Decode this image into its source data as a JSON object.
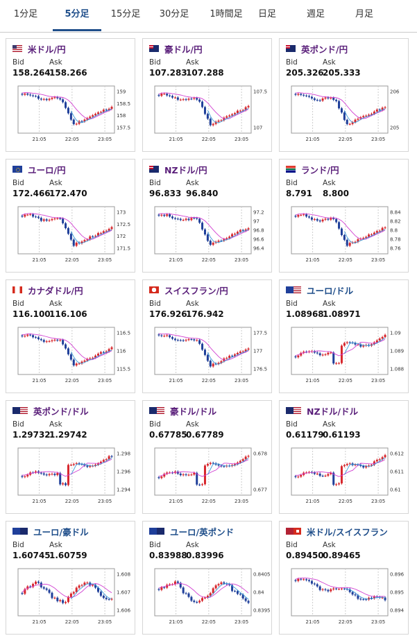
{
  "tabs": [
    {
      "label": "1分足",
      "active": false
    },
    {
      "label": "5分足",
      "active": true
    },
    {
      "label": "15分足",
      "active": false
    },
    {
      "label": "30分足",
      "active": false
    },
    {
      "label": "1時間足",
      "active": false
    },
    {
      "label": "日足",
      "active": false
    },
    {
      "label": "週足",
      "active": false
    },
    {
      "label": "月足",
      "active": false
    }
  ],
  "labels": {
    "bid": "Bid",
    "ask": "Ask"
  },
  "cards": [
    {
      "pair": "米ドル/円",
      "flag": "us-flag-icon",
      "bid": "158.264",
      "ask": "158.266",
      "ticks": [
        "159",
        "158.5",
        "158",
        "157.5"
      ],
      "shape": "jpy",
      "usd": false,
      "chart_data": {
        "type": "candlestick",
        "x_ticks": [
          "21:05",
          "22:05",
          "23:05"
        ],
        "y_ticks": [
          159,
          158.5,
          158,
          157.5
        ]
      }
    },
    {
      "pair": "豪ドル/円",
      "flag": "au-flag-icon",
      "bid": "107.283",
      "ask": "107.288",
      "ticks": [
        "107.5",
        "107"
      ],
      "shape": "jpy",
      "usd": false,
      "chart_data": {
        "type": "candlestick",
        "x_ticks": [
          "21:05",
          "22:05",
          "23:05"
        ],
        "y_ticks": [
          107.5,
          107
        ]
      }
    },
    {
      "pair": "英ポンド/円",
      "flag": "gb-flag-icon",
      "bid": "205.326",
      "ask": "205.333",
      "ticks": [
        "206",
        "205"
      ],
      "shape": "jpy",
      "usd": false,
      "chart_data": {
        "type": "candlestick",
        "x_ticks": [
          "21:05",
          "22:05",
          "23:05"
        ],
        "y_ticks": [
          206,
          205
        ]
      }
    },
    {
      "pair": "ユーロ/円",
      "flag": "eu-flag-icon",
      "bid": "172.466",
      "ask": "172.470",
      "ticks": [
        "173",
        "172.5",
        "172",
        "171.5"
      ],
      "shape": "jpy",
      "usd": false,
      "chart_data": {
        "type": "candlestick",
        "x_ticks": [
          "21:05",
          "22:05",
          "23:05"
        ],
        "y_ticks": [
          173,
          172.5,
          172,
          171.5
        ]
      }
    },
    {
      "pair": "NZドル/円",
      "flag": "nz-flag-icon",
      "bid": "96.833",
      "ask": "96.840",
      "ticks": [
        "97.2",
        "97",
        "96.8",
        "96.6",
        "96.4"
      ],
      "shape": "jpy",
      "usd": false,
      "chart_data": {
        "type": "candlestick",
        "x_ticks": [
          "21:05",
          "22:05",
          "23:05"
        ],
        "y_ticks": [
          97.2,
          97,
          96.8,
          96.6,
          96.4
        ]
      }
    },
    {
      "pair": "ランド/円",
      "flag": "za-flag-icon",
      "bid": "8.791",
      "ask": "8.800",
      "ticks": [
        "8.84",
        "8.82",
        "8.8",
        "8.78",
        "8.76"
      ],
      "shape": "jpy",
      "usd": false,
      "chart_data": {
        "type": "candlestick",
        "x_ticks": [
          "21:05",
          "22:05",
          "23:05"
        ],
        "y_ticks": [
          8.84,
          8.82,
          8.8,
          8.78,
          8.76
        ]
      }
    },
    {
      "pair": "カナダドル/円",
      "flag": "ca-flag-icon",
      "bid": "116.100",
      "ask": "116.106",
      "ticks": [
        "116.5",
        "116",
        "115.5"
      ],
      "shape": "jpy",
      "usd": false,
      "chart_data": {
        "type": "candlestick",
        "x_ticks": [
          "21:05",
          "22:05",
          "23:05"
        ],
        "y_ticks": [
          116.5,
          116,
          115.5
        ]
      }
    },
    {
      "pair": "スイスフラン/円",
      "flag": "ch-flag-icon",
      "bid": "176.926",
      "ask": "176.942",
      "ticks": [
        "177.5",
        "177",
        "176.5"
      ],
      "shape": "jpy",
      "usd": false,
      "chart_data": {
        "type": "candlestick",
        "x_ticks": [
          "21:05",
          "22:05",
          "23:05"
        ],
        "y_ticks": [
          177.5,
          177,
          176.5
        ]
      }
    },
    {
      "pair": "ユーロ/ドル",
      "flag": "eu-us-flag-icon",
      "bid": "1.08968",
      "ask": "1.08971",
      "ticks": [
        "1.09",
        "1.089",
        "1.088"
      ],
      "shape": "up",
      "usd": true,
      "chart_data": {
        "type": "candlestick",
        "x_ticks": [
          "21:05",
          "22:05",
          "23:05"
        ],
        "y_ticks": [
          1.09,
          1.089,
          1.088
        ]
      }
    },
    {
      "pair": "英ポンド/ドル",
      "flag": "gb-us-flag-icon",
      "bid": "1.29732",
      "ask": "1.29742",
      "ticks": [
        "1.298",
        "1.296",
        "1.294"
      ],
      "shape": "up",
      "usd": false,
      "chart_data": {
        "type": "candlestick",
        "x_ticks": [
          "21:05",
          "22:05",
          "23:05"
        ],
        "y_ticks": [
          1.298,
          1.296,
          1.294
        ]
      }
    },
    {
      "pair": "豪ドル/ドル",
      "flag": "au-us-flag-icon",
      "bid": "0.67785",
      "ask": "0.67789",
      "ticks": [
        "0.678",
        "0.677"
      ],
      "shape": "up",
      "usd": false,
      "chart_data": {
        "type": "candlestick",
        "x_ticks": [
          "21:05",
          "22:05",
          "23:05"
        ],
        "y_ticks": [
          0.678,
          0.677
        ]
      }
    },
    {
      "pair": "NZドル/ドル",
      "flag": "nz-us-flag-icon",
      "bid": "0.61179",
      "ask": "0.61193",
      "ticks": [
        "0.612",
        "0.611",
        "0.61"
      ],
      "shape": "up",
      "usd": false,
      "chart_data": {
        "type": "candlestick",
        "x_ticks": [
          "21:05",
          "22:05",
          "23:05"
        ],
        "y_ticks": [
          0.612,
          0.611,
          0.61
        ]
      }
    },
    {
      "pair": "ユーロ/豪ドル",
      "flag": "eu-au-flag-icon",
      "bid": "1.60745",
      "ask": "1.60759",
      "ticks": [
        "1.608",
        "1.607",
        "1.606"
      ],
      "shape": "choppy",
      "usd": true,
      "chart_data": {
        "type": "candlestick",
        "x_ticks": [
          "21:05",
          "22:05",
          "23:05"
        ],
        "y_ticks": [
          1.608,
          1.607,
          1.606
        ]
      }
    },
    {
      "pair": "ユーロ/英ポンド",
      "flag": "eu-gb-flag-icon",
      "bid": "0.83988",
      "ask": "0.83996",
      "ticks": [
        "0.8405",
        "0.84",
        "0.8395"
      ],
      "shape": "choppy",
      "usd": true,
      "chart_data": {
        "type": "candlestick",
        "x_ticks": [
          "21:05",
          "22:05",
          "23:05"
        ],
        "y_ticks": [
          0.8405,
          0.84,
          0.8395
        ]
      }
    },
    {
      "pair": "米ドル/スイスフラン",
      "flag": "us-ch-flag-icon",
      "bid": "0.89450",
      "ask": "0.89465",
      "ticks": [
        "0.896",
        "0.895",
        "0.894"
      ],
      "shape": "down",
      "usd": true,
      "chart_data": {
        "type": "candlestick",
        "x_ticks": [
          "21:05",
          "22:05",
          "23:05"
        ],
        "y_ticks": [
          0.896,
          0.895,
          0.894
        ]
      }
    }
  ],
  "colors": {
    "up": "#d7262c",
    "down": "#1f3f9a",
    "ma1": "#d13fd1",
    "ma2": "#3a9ad9",
    "tab_active": "#1f4e8a",
    "pair": "#5a1f7a"
  }
}
